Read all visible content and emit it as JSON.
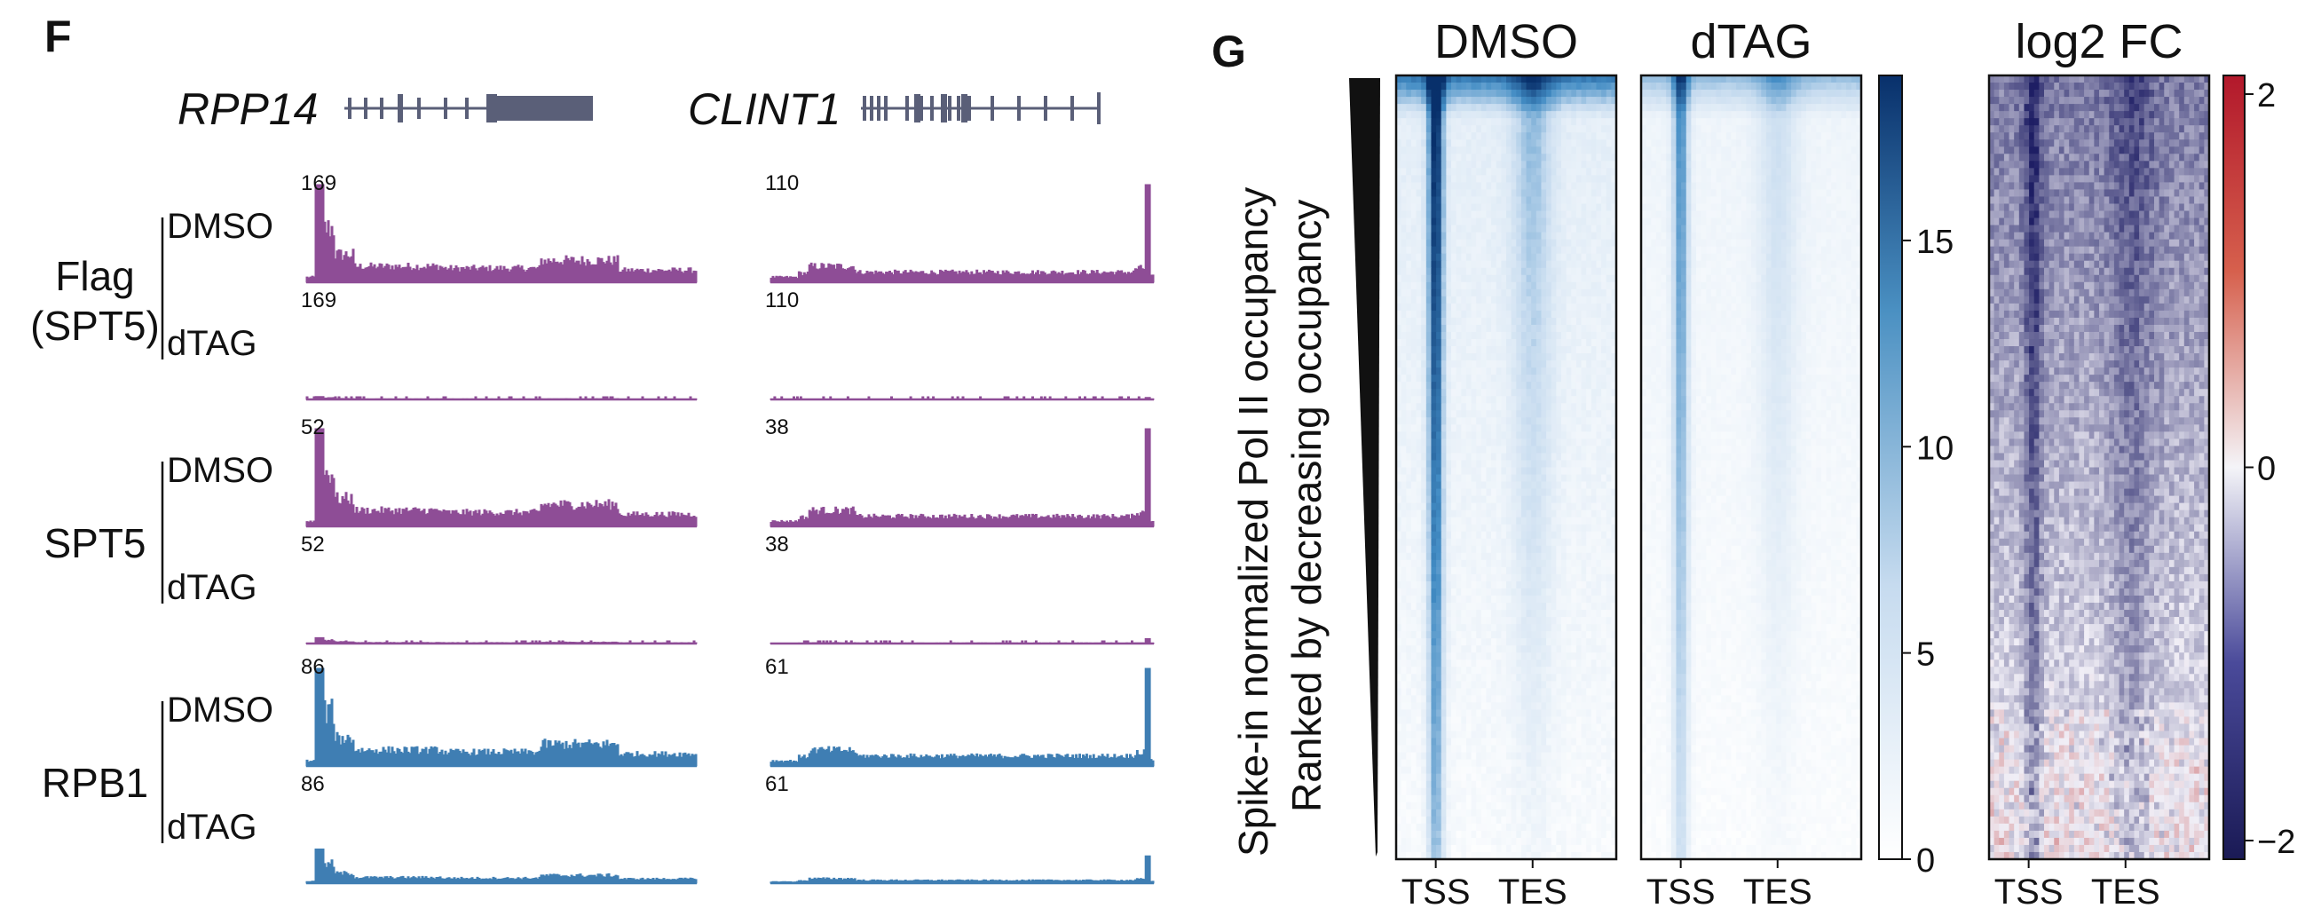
{
  "panel_f": {
    "label": "F",
    "genes": [
      {
        "name": "RPP14"
      },
      {
        "name": "CLINT1"
      }
    ],
    "groups": [
      {
        "name_lines": [
          "Flag",
          "(SPT5)"
        ],
        "color": "#8e4d96",
        "tracks": [
          {
            "condition": "DMSO",
            "scales": [
              "169",
              "110"
            ],
            "levels": [
              1.0,
              1.0
            ]
          },
          {
            "condition": "dTAG",
            "scales": [
              "169",
              "110"
            ],
            "levels": [
              0.03,
              0.02
            ]
          }
        ]
      },
      {
        "name_lines": [
          "SPT5"
        ],
        "color": "#8e4d96",
        "tracks": [
          {
            "condition": "DMSO",
            "scales": [
              "52",
              "38"
            ],
            "levels": [
              1.0,
              1.0
            ]
          },
          {
            "condition": "dTAG",
            "scales": [
              "52",
              "38"
            ],
            "levels": [
              0.06,
              0.05
            ]
          }
        ]
      },
      {
        "name_lines": [
          "RPB1"
        ],
        "color": "#3f7eb3",
        "tracks": [
          {
            "condition": "DMSO",
            "scales": [
              "86",
              "61"
            ],
            "levels": [
              1.0,
              1.0
            ]
          },
          {
            "condition": "dTAG",
            "scales": [
              "86",
              "61"
            ],
            "levels": [
              0.35,
              0.28
            ]
          }
        ]
      }
    ]
  },
  "panel_g": {
    "label": "G",
    "ylabel_lines": [
      "Spike-in normalized Pol II occupancy",
      "Ranked by decreasing occupancy"
    ],
    "heatmaps": [
      {
        "title": "DMSO",
        "x_ticks": [
          "TSS",
          "TES"
        ]
      },
      {
        "title": "dTAG",
        "x_ticks": [
          "TSS",
          "TES"
        ]
      },
      {
        "title": "log2 FC",
        "x_ticks": [
          "TSS",
          "TES"
        ]
      }
    ],
    "colorbar_blue": {
      "ticks": [
        "15",
        "10",
        "5",
        "0"
      ],
      "tick_values": [
        15,
        10,
        5,
        0
      ],
      "max": 19
    },
    "colorbar_fc": {
      "ticks": [
        "2",
        "0",
        "−2"
      ],
      "tick_values": [
        2,
        0,
        -2
      ],
      "min": -2.1,
      "max": 2.1
    },
    "colors": {
      "blue_max": "#08306b",
      "blue_min": "#f7fbff",
      "fc_neg": "#1f1f66",
      "fc_mid": "#f4f4f8",
      "fc_pos": "#b2182b"
    }
  }
}
